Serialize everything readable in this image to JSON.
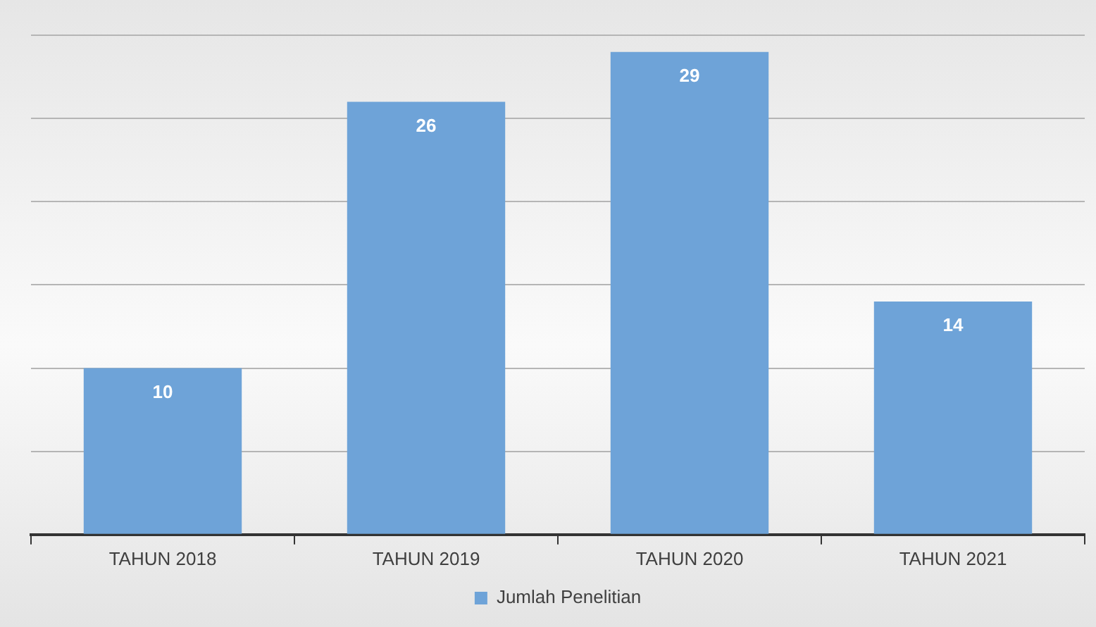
{
  "chart_data": {
    "type": "bar",
    "categories": [
      "TAHUN 2018",
      "TAHUN 2019",
      "TAHUN 2020",
      "TAHUN 2021"
    ],
    "series": [
      {
        "name": "Jumlah Penelitian",
        "color": "#6ea3d8",
        "values": [
          10,
          26,
          29,
          14
        ]
      }
    ],
    "ylim": [
      0,
      30
    ],
    "yticks": [
      {
        "value": 0,
        "label": null
      },
      {
        "value": 5,
        "label": null
      },
      {
        "value": 10,
        "label": null
      },
      {
        "value": 15,
        "label": null
      },
      {
        "value": 20,
        "label": null
      },
      {
        "value": 25,
        "label": null
      },
      {
        "value": 30,
        "label": null
      }
    ],
    "tick_labels": "x",
    "grid": "y",
    "legend": "bottom",
    "data_labels": true
  }
}
